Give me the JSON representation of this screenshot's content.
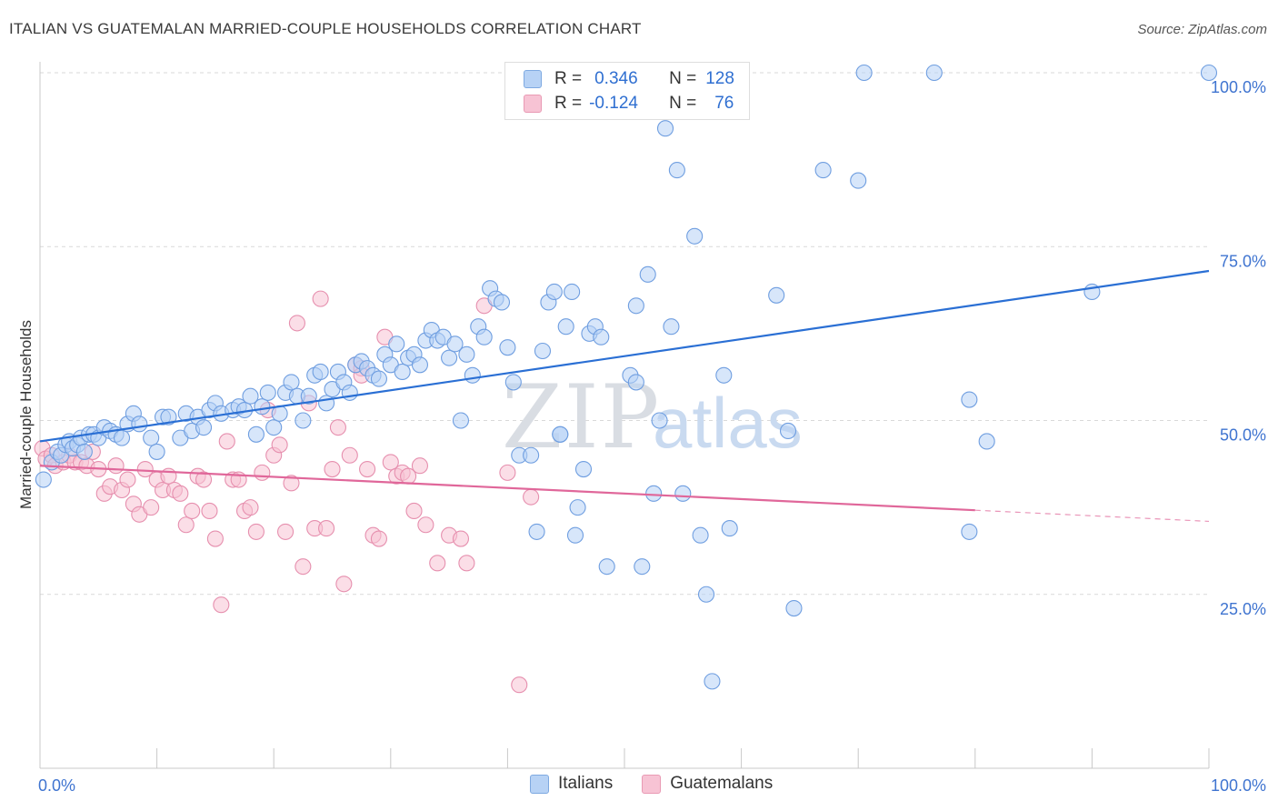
{
  "header": {
    "title": "ITALIAN VS GUATEMALAN MARRIED-COUPLE HOUSEHOLDS CORRELATION CHART",
    "source": "Source: ZipAtlas.com"
  },
  "legend": {
    "rows": [
      {
        "r_label": "R =",
        "r_value": "0.346",
        "n_label": "N =",
        "n_value": "128"
      },
      {
        "r_label": "R =",
        "r_value": "-0.124",
        "n_label": "N =",
        "n_value": "76"
      }
    ]
  },
  "bottom_legend": {
    "series_a": "Italians",
    "series_b": "Guatemalans"
  },
  "watermark": {
    "zip": "ZIP",
    "atlas": "atlas"
  },
  "colors": {
    "blue_fill": "#b7d2f5",
    "blue_stroke": "#6f9ee0",
    "blue_line": "#2a6fd4",
    "pink_fill": "#f7c3d4",
    "pink_stroke": "#e68fae",
    "pink_line": "#e0679a",
    "tick_label": "#3f74d0",
    "grid": "#d9d9d9"
  },
  "chart_data": {
    "type": "scatter",
    "title": "ITALIAN VS GUATEMALAN MARRIED-COUPLE HOUSEHOLDS CORRELATION CHART",
    "xlabel": "",
    "ylabel": "Married-couple Households",
    "xlim": [
      0,
      100
    ],
    "ylim": [
      0,
      102
    ],
    "x_tick_labels": [
      "0.0%",
      "100.0%"
    ],
    "y_ticks": [
      25,
      50,
      75,
      100
    ],
    "y_tick_labels": [
      "25.0%",
      "50.0%",
      "75.0%",
      "100.0%"
    ],
    "series": [
      {
        "name": "Italians",
        "r": 0.346,
        "n": 128,
        "trend": {
          "x0": 0,
          "y0": 47,
          "x1": 100,
          "y1": 71.5
        },
        "points": [
          [
            0.3,
            41.5
          ],
          [
            1,
            44
          ],
          [
            1.5,
            45.5
          ],
          [
            1.8,
            45
          ],
          [
            2.2,
            46.5
          ],
          [
            2.5,
            47
          ],
          [
            2.8,
            46
          ],
          [
            3.2,
            46.5
          ],
          [
            3.5,
            47.5
          ],
          [
            3.8,
            45.5
          ],
          [
            4.2,
            48
          ],
          [
            4.6,
            48
          ],
          [
            5,
            47.5
          ],
          [
            5.5,
            49
          ],
          [
            6,
            48.5
          ],
          [
            6.5,
            48
          ],
          [
            7,
            47.5
          ],
          [
            7.5,
            49.5
          ],
          [
            8,
            51
          ],
          [
            8.5,
            49.5
          ],
          [
            9.5,
            47.5
          ],
          [
            10,
            45.5
          ],
          [
            10.5,
            50.5
          ],
          [
            11,
            50.5
          ],
          [
            12,
            47.5
          ],
          [
            12.5,
            51
          ],
          [
            13,
            48.5
          ],
          [
            13.5,
            50.5
          ],
          [
            14,
            49
          ],
          [
            14.5,
            51.5
          ],
          [
            15,
            52.5
          ],
          [
            15.5,
            51
          ],
          [
            16.5,
            51.5
          ],
          [
            17,
            52
          ],
          [
            17.5,
            51.5
          ],
          [
            18,
            53.5
          ],
          [
            18.5,
            48
          ],
          [
            19,
            52
          ],
          [
            19.5,
            54
          ],
          [
            20,
            49
          ],
          [
            20.5,
            51
          ],
          [
            21,
            54
          ],
          [
            21.5,
            55.5
          ],
          [
            22,
            53.5
          ],
          [
            22.5,
            50
          ],
          [
            23,
            53.5
          ],
          [
            23.5,
            56.5
          ],
          [
            24,
            57
          ],
          [
            24.5,
            52.5
          ],
          [
            25,
            54.5
          ],
          [
            25.5,
            57
          ],
          [
            26,
            55.5
          ],
          [
            26.5,
            54
          ],
          [
            27,
            58
          ],
          [
            27.5,
            58.5
          ],
          [
            28,
            57.5
          ],
          [
            28.5,
            56.5
          ],
          [
            29,
            56
          ],
          [
            29.5,
            59.5
          ],
          [
            30,
            58
          ],
          [
            30.5,
            61
          ],
          [
            31,
            57
          ],
          [
            31.5,
            59
          ],
          [
            32,
            59.5
          ],
          [
            32.5,
            58
          ],
          [
            33,
            61.5
          ],
          [
            33.5,
            63
          ],
          [
            34,
            61.5
          ],
          [
            34.5,
            62
          ],
          [
            35,
            59
          ],
          [
            35.5,
            61
          ],
          [
            36,
            50
          ],
          [
            36.5,
            59.5
          ],
          [
            37,
            56.5
          ],
          [
            37.5,
            63.5
          ],
          [
            38,
            62
          ],
          [
            38.5,
            69
          ],
          [
            39,
            67.5
          ],
          [
            39.5,
            67
          ],
          [
            40,
            60.5
          ],
          [
            40.5,
            55.5
          ],
          [
            41,
            45
          ],
          [
            42,
            45
          ],
          [
            42.5,
            34
          ],
          [
            43,
            60
          ],
          [
            43.5,
            67
          ],
          [
            44,
            68.5
          ],
          [
            44.5,
            48
          ],
          [
            45,
            63.5
          ],
          [
            45.5,
            68.5
          ],
          [
            45.8,
            33.5
          ],
          [
            46,
            37.5
          ],
          [
            46.5,
            43
          ],
          [
            47,
            62.5
          ],
          [
            47.5,
            63.5
          ],
          [
            48,
            62
          ],
          [
            48.5,
            29
          ],
          [
            50.5,
            56.5
          ],
          [
            51,
            66.5
          ],
          [
            51,
            55.5
          ],
          [
            51.5,
            29
          ],
          [
            52,
            71
          ],
          [
            52.5,
            39.5
          ],
          [
            53,
            50
          ],
          [
            53.5,
            92
          ],
          [
            54,
            63.5
          ],
          [
            54.5,
            86
          ],
          [
            55,
            39.5
          ],
          [
            56,
            76.5
          ],
          [
            56.5,
            33.5
          ],
          [
            57,
            25
          ],
          [
            57.5,
            12.5
          ],
          [
            58.5,
            56.5
          ],
          [
            59,
            34.5
          ],
          [
            63,
            68
          ],
          [
            64,
            48.5
          ],
          [
            64.5,
            23
          ],
          [
            67,
            86
          ],
          [
            70,
            84.5
          ],
          [
            70.5,
            100
          ],
          [
            76.5,
            100
          ],
          [
            79.5,
            34
          ],
          [
            79.5,
            53
          ],
          [
            81,
            47
          ],
          [
            90,
            68.5
          ],
          [
            100,
            100
          ],
          [
            44.5,
            48
          ]
        ]
      },
      {
        "name": "Guatemalans",
        "r": -0.124,
        "n": 76,
        "trend": {
          "x0": 0,
          "y0": 43.5,
          "x1": 100,
          "y1": 35.5,
          "solid_until": 80
        },
        "points": [
          [
            0.2,
            46
          ],
          [
            0.5,
            44.5
          ],
          [
            1,
            45
          ],
          [
            1.3,
            43.5
          ],
          [
            2,
            44
          ],
          [
            2.5,
            45
          ],
          [
            3,
            44
          ],
          [
            3.5,
            44
          ],
          [
            4,
            43.5
          ],
          [
            4.5,
            45.5
          ],
          [
            5,
            43
          ],
          [
            5.5,
            39.5
          ],
          [
            6,
            40.5
          ],
          [
            6.5,
            43.5
          ],
          [
            7,
            40
          ],
          [
            7.5,
            41.5
          ],
          [
            8,
            38
          ],
          [
            8.5,
            36.5
          ],
          [
            9,
            43
          ],
          [
            9.5,
            37.5
          ],
          [
            10,
            41.5
          ],
          [
            10.5,
            40
          ],
          [
            11,
            42
          ],
          [
            11.5,
            40
          ],
          [
            12,
            39.5
          ],
          [
            12.5,
            35
          ],
          [
            13,
            37
          ],
          [
            13.5,
            42
          ],
          [
            14,
            41.5
          ],
          [
            14.5,
            37
          ],
          [
            15,
            33
          ],
          [
            15.5,
            23.5
          ],
          [
            16,
            47
          ],
          [
            16.5,
            41.5
          ],
          [
            17,
            41.5
          ],
          [
            17.5,
            37
          ],
          [
            18,
            37.5
          ],
          [
            18.5,
            34
          ],
          [
            19,
            42.5
          ],
          [
            19.5,
            51.5
          ],
          [
            20,
            45
          ],
          [
            20.5,
            46.5
          ],
          [
            21,
            34
          ],
          [
            21.5,
            41
          ],
          [
            22,
            64
          ],
          [
            22.5,
            29
          ],
          [
            23,
            52.5
          ],
          [
            23.5,
            34.5
          ],
          [
            24,
            67.5
          ],
          [
            24.5,
            34.5
          ],
          [
            25,
            43
          ],
          [
            25.5,
            49
          ],
          [
            26,
            26.5
          ],
          [
            26.5,
            45
          ],
          [
            27,
            58
          ],
          [
            27.5,
            57.5
          ],
          [
            28,
            43
          ],
          [
            28.5,
            33.5
          ],
          [
            29,
            33
          ],
          [
            29.5,
            62
          ],
          [
            30,
            44
          ],
          [
            30.5,
            42
          ],
          [
            31,
            42.5
          ],
          [
            31.5,
            42
          ],
          [
            32,
            37
          ],
          [
            32.5,
            43.5
          ],
          [
            33,
            35
          ],
          [
            34,
            29.5
          ],
          [
            35,
            33.5
          ],
          [
            36,
            33
          ],
          [
            36.5,
            29.5
          ],
          [
            38,
            66.5
          ],
          [
            40,
            42.5
          ],
          [
            41,
            12
          ],
          [
            42,
            39
          ],
          [
            27.5,
            56.5
          ]
        ]
      }
    ]
  }
}
